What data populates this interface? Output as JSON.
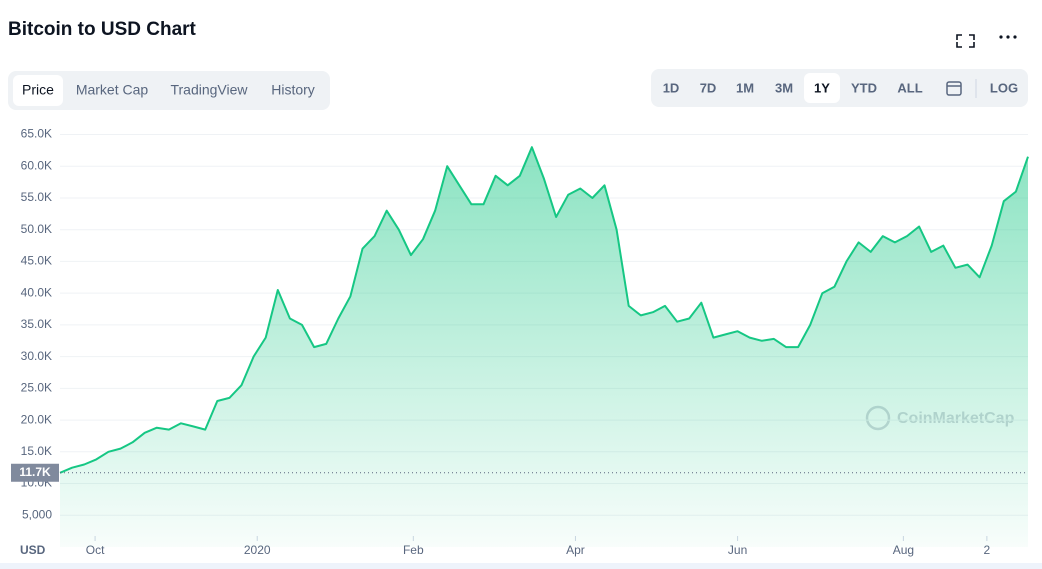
{
  "header": {
    "title": "Bitcoin to USD Chart"
  },
  "tabs": [
    "Price",
    "Market Cap",
    "TradingView",
    "History"
  ],
  "active_tab": 0,
  "ranges": [
    "1D",
    "7D",
    "1M",
    "3M",
    "1Y",
    "YTD",
    "ALL"
  ],
  "active_range": 4,
  "log_label": "LOG",
  "watermark": "CoinMarketCap",
  "chart_data": {
    "type": "line",
    "currency_label": "USD",
    "series": [
      {
        "name": "Price",
        "color": "#16c784",
        "values": [
          11700,
          12500,
          13000,
          13800,
          15000,
          15500,
          16500,
          18000,
          18800,
          18500,
          19500,
          19000,
          18500,
          23000,
          23500,
          25500,
          30000,
          33000,
          40500,
          36000,
          35000,
          31500,
          32000,
          36000,
          39500,
          47000,
          49000,
          53000,
          50000,
          46000,
          48500,
          53000,
          60000,
          57000,
          54000,
          54000,
          58500,
          57000,
          58500,
          63000,
          58000,
          52000,
          55500,
          56500,
          55000,
          57000,
          50000,
          38000,
          36500,
          37000,
          38000,
          35500,
          36000,
          38500,
          33000,
          33500,
          34000,
          33000,
          32500,
          32800,
          31500,
          31500,
          35000,
          40000,
          41000,
          45000,
          48000,
          46500,
          49000,
          48000,
          49000,
          50500,
          46500,
          47500,
          44000,
          44500,
          42500,
          47500,
          54500,
          56000,
          61500
        ]
      }
    ],
    "current_price": {
      "value": 11700,
      "label": "11.7K"
    },
    "ylim": [
      0,
      66500
    ],
    "yticks": [
      {
        "value": 5000,
        "label": "5,000"
      },
      {
        "value": 10000,
        "label": "10.0K"
      },
      {
        "value": 15000,
        "label": "15.0K"
      },
      {
        "value": 20000,
        "label": "20.0K"
      },
      {
        "value": 25000,
        "label": "25.0K"
      },
      {
        "value": 30000,
        "label": "30.0K"
      },
      {
        "value": 35000,
        "label": "35.0K"
      },
      {
        "value": 40000,
        "label": "40.0K"
      },
      {
        "value": 45000,
        "label": "45.0K"
      },
      {
        "value": 50000,
        "label": "50.0K"
      },
      {
        "value": 55000,
        "label": "55.0K"
      },
      {
        "value": 60000,
        "label": "60.0K"
      },
      {
        "value": 65000,
        "label": "65.0K"
      }
    ],
    "xticks": [
      {
        "value": 2.9,
        "label": "Oct"
      },
      {
        "value": 16.3,
        "label": "2020"
      },
      {
        "value": 29.2,
        "label": "Feb"
      },
      {
        "value": 42.6,
        "label": "Apr"
      },
      {
        "value": 56,
        "label": "Jun"
      },
      {
        "value": 69.7,
        "label": "Aug"
      },
      {
        "value": 76.6,
        "label": "2"
      }
    ],
    "grid": true
  }
}
